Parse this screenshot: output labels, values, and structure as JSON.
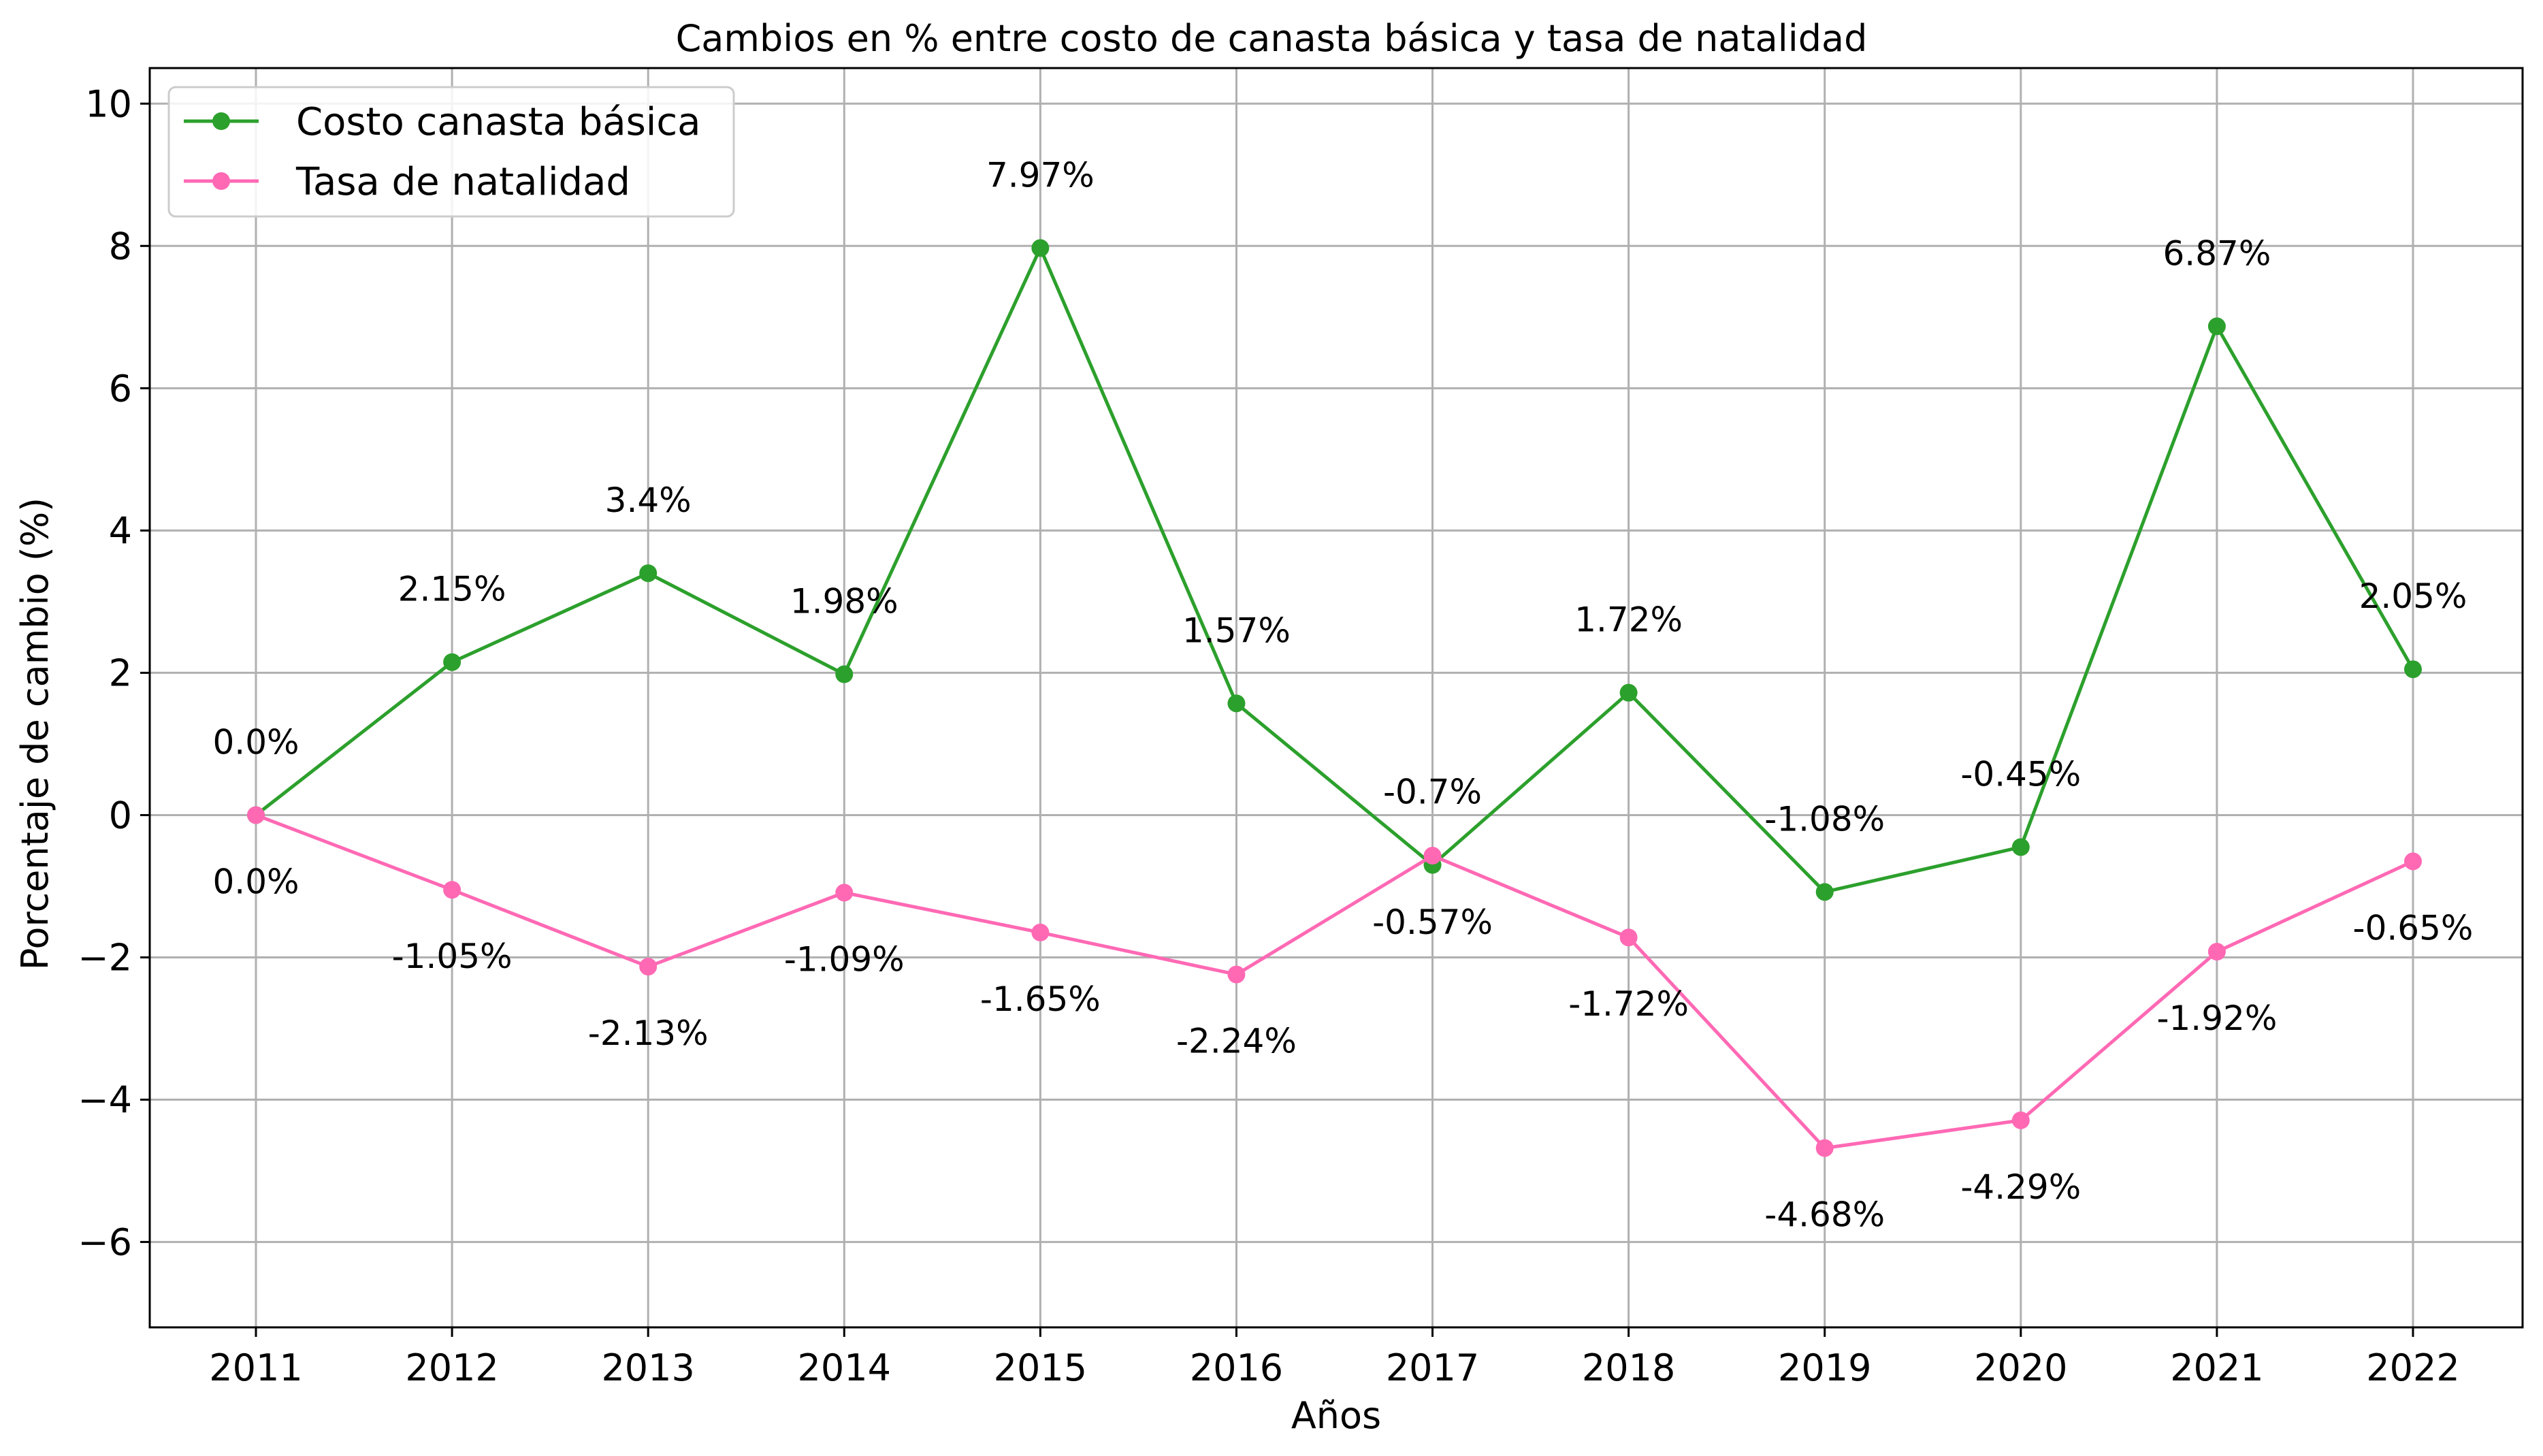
{
  "chart_data": {
    "type": "line",
    "title": "Cambios en % entre costo de canasta básica y tasa de natalidad",
    "xlabel": "Años",
    "ylabel": "Porcentaje de cambio (%)",
    "x": [
      "2011",
      "2012",
      "2013",
      "2014",
      "2015",
      "2016",
      "2017",
      "2018",
      "2019",
      "2020",
      "2021",
      "2022"
    ],
    "ylim": [
      -7.2,
      10.5
    ],
    "yticks": [
      -6,
      -4,
      -2,
      0,
      2,
      4,
      6,
      8,
      10
    ],
    "ytick_labels": [
      "−6",
      "−4",
      "−2",
      "0",
      "2",
      "4",
      "6",
      "8",
      "10"
    ],
    "grid": true,
    "legend_position": "top-left",
    "series": [
      {
        "name": "Costo canasta básica",
        "color": "#2ca02c",
        "values": [
          0.0,
          2.15,
          3.4,
          1.98,
          7.97,
          1.57,
          -0.7,
          1.72,
          -1.08,
          -0.45,
          6.87,
          2.05
        ],
        "labels": [
          "0.0%",
          "2.15%",
          "3.4%",
          "1.98%",
          "7.97%",
          "1.57%",
          "-0.7%",
          "1.72%",
          "-1.08%",
          "-0.45%",
          "6.87%",
          "2.05%"
        ]
      },
      {
        "name": "Tasa de natalidad",
        "color": "#ff69b4",
        "values": [
          0.0,
          -1.05,
          -2.13,
          -1.09,
          -1.65,
          -2.24,
          -0.57,
          -1.72,
          -4.68,
          -4.29,
          -1.92,
          -0.65
        ],
        "labels": [
          "0.0%",
          "-1.05%",
          "-2.13%",
          "-1.09%",
          "-1.65%",
          "-2.24%",
          "-0.57%",
          "-1.72%",
          "-4.68%",
          "-4.29%",
          "-1.92%",
          "-0.65%"
        ]
      }
    ]
  }
}
